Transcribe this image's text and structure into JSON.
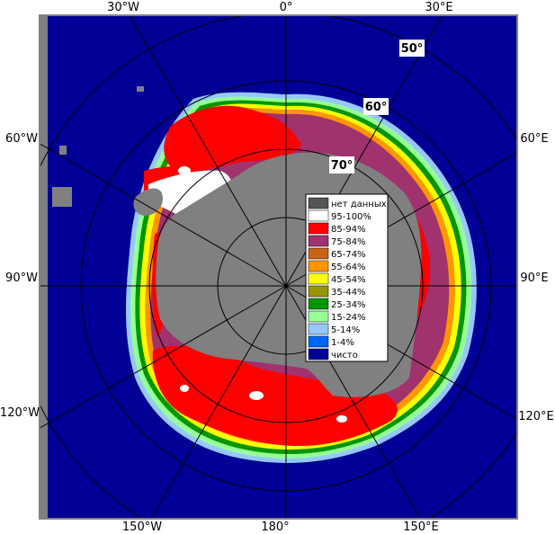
{
  "longitude_labels": {
    "w30": "30°W",
    "zero": "0°",
    "e30": "30°E",
    "w60": "60°W",
    "e60": "60°E",
    "w90": "90°W",
    "e90": "90°E",
    "w120": "120°W",
    "e120": "120°E",
    "w150": "150°W",
    "lon180": "180°",
    "e150": "150°E"
  },
  "latitude_labels": {
    "lat50": "50°",
    "lat60": "60°",
    "lat70": "70°"
  },
  "legend": {
    "items": [
      {
        "label": "нет данных",
        "color": "#555555"
      },
      {
        "label": "95-100%",
        "color": "#ffffff"
      },
      {
        "label": "85-94%",
        "color": "#ff0000"
      },
      {
        "label": "75-84%",
        "color": "#a0326e"
      },
      {
        "label": "65-74%",
        "color": "#c86414"
      },
      {
        "label": "55-64%",
        "color": "#ff9600"
      },
      {
        "label": "45-54%",
        "color": "#ffff00"
      },
      {
        "label": "35-44%",
        "color": "#969600"
      },
      {
        "label": "25-34%",
        "color": "#009600"
      },
      {
        "label": "15-24%",
        "color": "#96ff96"
      },
      {
        "label": "5-14%",
        "color": "#96c8ff"
      },
      {
        "label": "1-4%",
        "color": "#0064ff"
      },
      {
        "label": "чисто",
        "color": "#000096"
      }
    ]
  },
  "colors": {
    "ocean": "#000096",
    "land": "#808080",
    "frame": "#808080"
  }
}
